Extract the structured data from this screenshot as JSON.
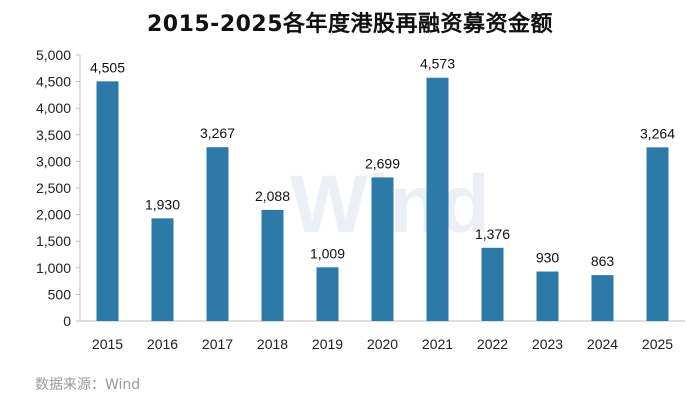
{
  "chart_data": {
    "type": "bar",
    "title": "2015-2025各年度港股再融资募资金额",
    "categories": [
      "2015",
      "2016",
      "2017",
      "2018",
      "2019",
      "2020",
      "2021",
      "2022",
      "2023",
      "2024",
      "2025"
    ],
    "values": [
      4505,
      1930,
      3267,
      2088,
      1009,
      2699,
      4573,
      1376,
      930,
      863,
      3264
    ],
    "value_labels": [
      "4,505",
      "1,930",
      "3,267",
      "2,088",
      "1,009",
      "2,699",
      "4,573",
      "1,376",
      "930",
      "863",
      "3,264"
    ],
    "yticks": [
      "0",
      "500",
      "1,000",
      "1,500",
      "2,000",
      "2,500",
      "3,000",
      "3,500",
      "4,000",
      "4,500",
      "5,000"
    ],
    "ylim": [
      0,
      5000
    ],
    "grid": false,
    "bar_color": "#2b7aa8",
    "xlabel": "",
    "ylabel": ""
  },
  "watermark": "Wind",
  "source": "数据来源：Wind"
}
